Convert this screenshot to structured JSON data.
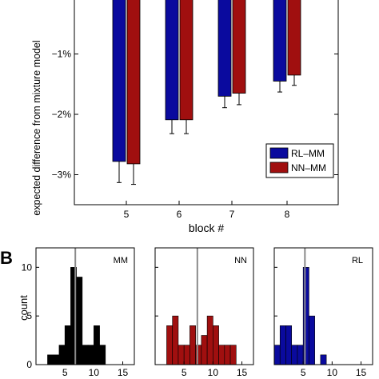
{
  "panel_b_label": "B",
  "chart_data": [
    {
      "type": "bar",
      "panel": "A",
      "categories": [
        "5",
        "6",
        "7",
        "8"
      ],
      "xlabel": "block #",
      "ylabel": "expected difference from mixture model",
      "ylim": [
        -3.5,
        0
      ],
      "yticks": [
        -1,
        -2,
        -3
      ],
      "ytick_labels": [
        "−1%",
        "−2%",
        "−3%"
      ],
      "legend_position": "bottom-right",
      "series": [
        {
          "name": "RL–MM",
          "color": "#0a0a9e",
          "values": [
            -2.78,
            -2.09,
            -1.7,
            -1.45
          ],
          "errors": [
            0.35,
            0.23,
            0.19,
            0.18
          ]
        },
        {
          "name": "NN–MM",
          "color": "#a00f0f",
          "values": [
            -2.82,
            -2.09,
            -1.65,
            -1.35
          ],
          "errors": [
            0.34,
            0.23,
            0.19,
            0.17
          ]
        }
      ]
    },
    {
      "type": "bar",
      "panel": "B",
      "subtype": "histogram",
      "title": "MM",
      "ylabel": "count",
      "ylim": [
        0,
        12
      ],
      "yticks": [
        "0",
        "5",
        "10"
      ],
      "xticks": [
        "5",
        "10",
        "15"
      ],
      "xlim": [
        0,
        17
      ],
      "bin_width": 1,
      "color": "#000000",
      "bins_start": [
        2,
        3,
        4,
        5,
        6,
        7,
        8,
        9,
        10,
        11
      ],
      "counts": [
        1,
        1,
        2,
        4,
        10,
        9,
        2,
        2,
        4,
        2
      ],
      "reference_line": 6.8
    },
    {
      "type": "bar",
      "panel": "B",
      "subtype": "histogram",
      "title": "NN",
      "ylim": [
        0,
        12
      ],
      "xticks": [
        "5",
        "10",
        "15"
      ],
      "xlim": [
        0,
        17
      ],
      "bin_width": 1,
      "color": "#a00f0f",
      "bins_start": [
        2,
        3,
        4,
        5,
        6,
        7,
        8,
        9,
        10,
        11,
        12,
        13
      ],
      "counts": [
        4,
        5,
        2,
        2,
        4,
        2,
        3,
        5,
        4,
        2,
        2,
        2
      ],
      "reference_line": 7.3
    },
    {
      "type": "bar",
      "panel": "B",
      "subtype": "histogram",
      "title": "RL",
      "ylim": [
        0,
        12
      ],
      "xticks": [
        "5",
        "10",
        "15"
      ],
      "xlim": [
        0,
        17
      ],
      "bin_width": 1,
      "color": "#0a0a9e",
      "bins_start": [
        0,
        1,
        2,
        3,
        4,
        5,
        6,
        7,
        8,
        9,
        10,
        11,
        12,
        13,
        14,
        15,
        16
      ],
      "counts": [
        2,
        4,
        4,
        2,
        2,
        10,
        5,
        0,
        1,
        0,
        0,
        0,
        0,
        0,
        0,
        0,
        0
      ],
      "reference_line": 5.3
    }
  ]
}
